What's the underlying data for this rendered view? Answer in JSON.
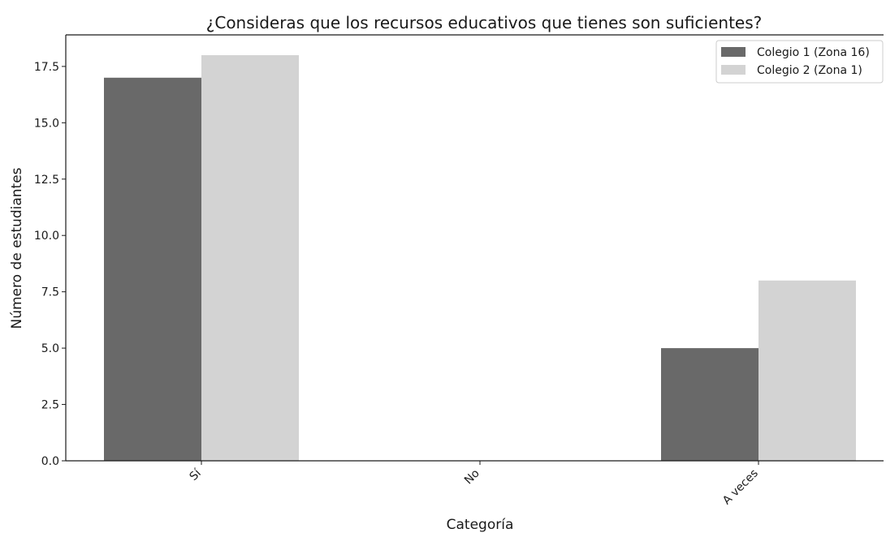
{
  "chart_data": {
    "type": "bar",
    "title": "¿Consideras que los recursos educativos que tienes son suficientes?",
    "xlabel": "Categoría",
    "ylabel": "Número de estudiantes",
    "categories": [
      "Sí",
      "No",
      "A veces"
    ],
    "series": [
      {
        "name": "Colegio 1 (Zona 16)",
        "values": [
          17,
          0,
          5
        ],
        "color": "#696969"
      },
      {
        "name": "Colegio 2 (Zona 1)",
        "values": [
          18,
          0,
          8
        ],
        "color": "#d3d3d3"
      }
    ],
    "ylim": [
      0,
      18.9
    ],
    "yticks": [
      0,
      2.5,
      5,
      7.5,
      10,
      12.5,
      15,
      17.5
    ],
    "ytick_labels": [
      "0.0",
      "2.5",
      "5.0",
      "7.5",
      "10.0",
      "12.5",
      "15.0",
      "17.5"
    ],
    "grid": false,
    "legend_position": "top-right",
    "xtick_rotation": -45
  }
}
